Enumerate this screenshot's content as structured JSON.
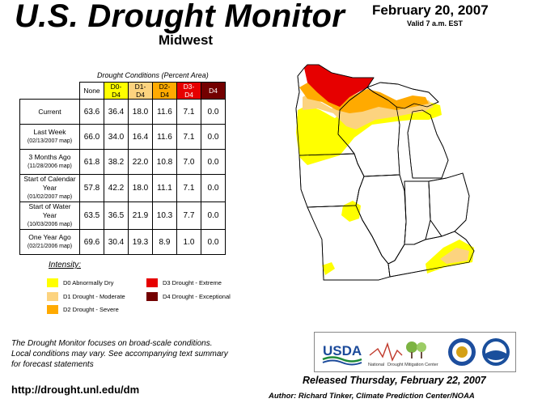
{
  "header": {
    "title": "U.S. Drought Monitor",
    "region": "Midwest",
    "date": "February 20, 2007",
    "valid": "Valid 7 a.m. EST"
  },
  "table": {
    "caption": "Drought Conditions (Percent Area)",
    "columns": [
      "None",
      "D0-D4",
      "D1-D4",
      "D2-D4",
      "D3-D4",
      "D4"
    ],
    "rows": [
      {
        "label": "Current",
        "sub": "",
        "values": [
          "63.6",
          "36.4",
          "18.0",
          "11.6",
          "7.1",
          "0.0"
        ]
      },
      {
        "label": "Last Week",
        "sub": "(02/13/2007 map)",
        "values": [
          "66.0",
          "34.0",
          "16.4",
          "11.6",
          "7.1",
          "0.0"
        ]
      },
      {
        "label": "3 Months Ago",
        "sub": "(11/28/2006 map)",
        "values": [
          "61.8",
          "38.2",
          "22.0",
          "10.8",
          "7.0",
          "0.0"
        ]
      },
      {
        "label": "Start of Calendar Year",
        "sub": "(01/02/2007 map)",
        "values": [
          "57.8",
          "42.2",
          "18.0",
          "11.1",
          "7.1",
          "0.0"
        ]
      },
      {
        "label": "Start of Water Year",
        "sub": "(10/03/2006 map)",
        "values": [
          "63.5",
          "36.5",
          "21.9",
          "10.3",
          "7.7",
          "0.0"
        ]
      },
      {
        "label": "One Year Ago",
        "sub": "(02/21/2006 map)",
        "values": [
          "69.6",
          "30.4",
          "19.3",
          "8.9",
          "1.0",
          "0.0"
        ]
      }
    ]
  },
  "legend": {
    "title": "Intensity:",
    "items": [
      {
        "label": "D0 Abnormally Dry",
        "color": "#ffff00"
      },
      {
        "label": "D1 Drought - Moderate",
        "color": "#fcd37f"
      },
      {
        "label": "D2 Drought - Severe",
        "color": "#ffaa00"
      },
      {
        "label": "D3 Drought - Extreme",
        "color": "#e60000"
      },
      {
        "label": "D4 Drought - Exceptional",
        "color": "#730000"
      }
    ]
  },
  "footer": {
    "note_lines": [
      "The Drought Monitor focuses on broad-scale conditions.",
      "Local conditions may vary. See accompanying text summary",
      "for forecast statements"
    ],
    "url": "http://drought.unl.edu/dm",
    "released": "Released Thursday, February 22, 2007",
    "author": "Author: Richard Tinker, Climate Prediction Center/NOAA"
  },
  "logos": {
    "usda": "USDA",
    "ndmc_line1": "National",
    "ndmc_line2": "Drought Mitigation Center"
  }
}
